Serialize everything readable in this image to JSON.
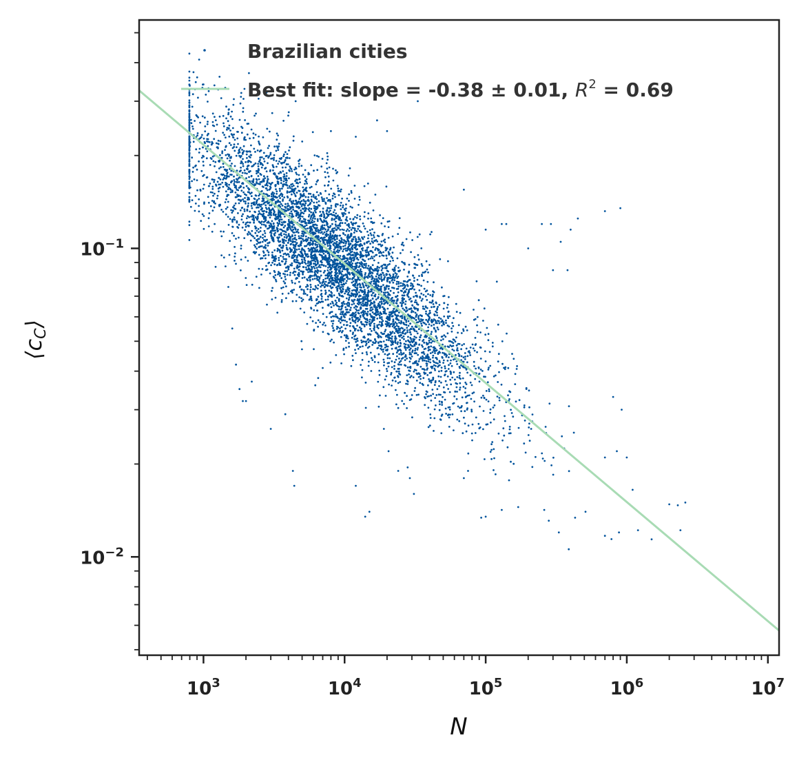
{
  "chart_data": {
    "type": "scatter",
    "title": "",
    "xlabel": "N",
    "ylabel": "⟨c_C⟩",
    "xscale": "log",
    "yscale": "log",
    "xlim": [
      350,
      12000000
    ],
    "ylim": [
      0.0048,
      0.55
    ],
    "grid": false,
    "legend_position": "top-right",
    "x_ticks": [
      {
        "value": 1000,
        "base": "10",
        "exp": "3"
      },
      {
        "value": 10000,
        "base": "10",
        "exp": "4"
      },
      {
        "value": 100000,
        "base": "10",
        "exp": "5"
      },
      {
        "value": 1000000,
        "base": "10",
        "exp": "6"
      },
      {
        "value": 10000000,
        "base": "10",
        "exp": "7"
      }
    ],
    "y_ticks": [
      {
        "value": 0.1,
        "base": "10",
        "exp": "−1"
      },
      {
        "value": 0.01,
        "base": "10",
        "exp": "−2"
      }
    ],
    "series": [
      {
        "name": "Brazilian cities",
        "kind": "scatter",
        "color": "#00539c",
        "n_points": 5565,
        "center_log_x": 3.95,
        "center_log_y": -1.05,
        "trend_slope": -0.38,
        "spread_log_x": 0.52,
        "spread_log_y": 0.115,
        "points": [
          [
            1000,
            0.34
          ],
          [
            1300,
            0.36
          ],
          [
            2100,
            0.37
          ],
          [
            2800,
            0.32
          ],
          [
            4500,
            0.3
          ],
          [
            33000,
            0.3
          ],
          [
            17000,
            0.26
          ],
          [
            20000,
            0.24
          ],
          [
            12000,
            0.23
          ],
          [
            8000,
            0.24
          ],
          [
            800,
            0.17
          ],
          [
            900,
            0.18
          ],
          [
            950,
            0.155
          ],
          [
            1100,
            0.13
          ],
          [
            1200,
            0.12
          ],
          [
            1500,
            0.075
          ],
          [
            1600,
            0.055
          ],
          [
            1700,
            0.042
          ],
          [
            1800,
            0.035
          ],
          [
            1900,
            0.032
          ],
          [
            2000,
            0.032
          ],
          [
            2200,
            0.037
          ],
          [
            3000,
            0.026
          ],
          [
            4300,
            0.019
          ],
          [
            4400,
            0.017
          ],
          [
            3800,
            0.029
          ],
          [
            6200,
            0.036
          ],
          [
            6500,
            0.038
          ],
          [
            12000,
            0.017
          ],
          [
            14000,
            0.0135
          ],
          [
            15000,
            0.014
          ],
          [
            19000,
            0.026
          ],
          [
            20500,
            0.022
          ],
          [
            24000,
            0.019
          ],
          [
            28000,
            0.0195
          ],
          [
            29000,
            0.018
          ],
          [
            31000,
            0.016
          ],
          [
            70000,
            0.018
          ],
          [
            75000,
            0.019
          ],
          [
            93000,
            0.0134
          ],
          [
            100000,
            0.0135
          ],
          [
            130000,
            0.0142
          ],
          [
            170000,
            0.0145
          ],
          [
            260000,
            0.0142
          ],
          [
            280000,
            0.0131
          ],
          [
            330000,
            0.012
          ],
          [
            430000,
            0.0134
          ],
          [
            510000,
            0.014
          ],
          [
            700000,
            0.0117
          ],
          [
            880000,
            0.012
          ],
          [
            1100000,
            0.0165
          ],
          [
            1200000,
            0.0122
          ],
          [
            1500000,
            0.0114
          ],
          [
            2000000,
            0.0148
          ],
          [
            2300000,
            0.0147
          ],
          [
            2400000,
            0.0122
          ],
          [
            2600000,
            0.015
          ],
          [
            200000,
            0.1
          ],
          [
            250000,
            0.12
          ],
          [
            290000,
            0.12
          ],
          [
            300000,
            0.085
          ],
          [
            340000,
            0.105
          ],
          [
            380000,
            0.085
          ],
          [
            400000,
            0.115
          ],
          [
            450000,
            0.125
          ],
          [
            700000,
            0.132
          ],
          [
            900000,
            0.135
          ],
          [
            70000,
            0.155
          ],
          [
            130000,
            0.12
          ],
          [
            140000,
            0.12
          ],
          [
            100000,
            0.115
          ],
          [
            120000,
            0.078
          ],
          [
            800000,
            0.033
          ],
          [
            920000,
            0.03
          ],
          [
            700000,
            0.021
          ],
          [
            850000,
            0.022
          ],
          [
            1000000,
            0.021
          ]
        ]
      },
      {
        "name": "Best fit: slope = -0.38 ± 0.01, ",
        "legend_suffix": " = 0.69",
        "r2_symbol": "R",
        "r2_exp": "2",
        "kind": "line",
        "color": "#a8dbb4",
        "slope": -0.38,
        "slope_err": 0.01,
        "r_squared": 0.69,
        "line": [
          [
            350,
            0.325
          ],
          [
            12000000,
            0.00577
          ]
        ]
      }
    ]
  }
}
